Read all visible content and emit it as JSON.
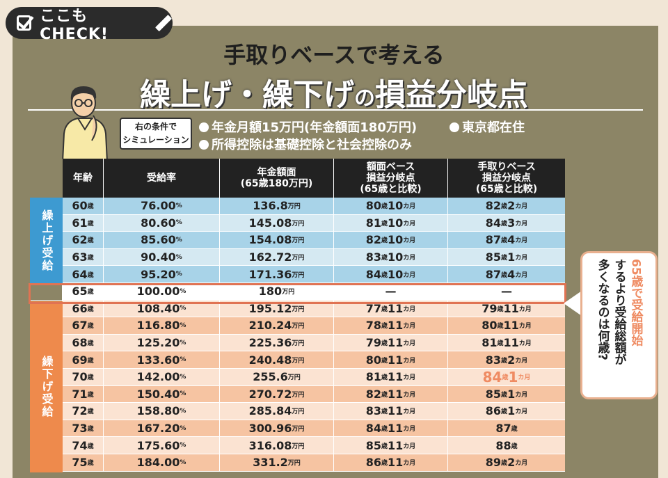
{
  "badge": {
    "text": "ここもCHECK!"
  },
  "title": {
    "sub": "手取りベースで考える",
    "main_a": "繰上げ・繰下げ",
    "main_no": "の",
    "main_b": "損益分岐点"
  },
  "conditions": {
    "label": "右の条件で\nシミュレーション",
    "items": [
      "年金月額15万円(年金額面180万円)",
      "東京都在住",
      "所得控除は基礎控除と社会控除のみ"
    ]
  },
  "table": {
    "headers": [
      "年齢",
      "受給率",
      "年金額面\n(65歳180万円)",
      "額面ベース\n損益分岐点\n(65歳と比較)",
      "手取りベース\n損益分岐点\n(65歳と比較)"
    ],
    "group_up": "繰上げ受給",
    "group_down": "繰下げ受給",
    "rows": [
      {
        "age": "60",
        "rate": "76.00",
        "amount": "136.8",
        "gross": [
          "80",
          "10"
        ],
        "net": [
          "82",
          "2"
        ]
      },
      {
        "age": "61",
        "rate": "80.60",
        "amount": "145.08",
        "gross": [
          "81",
          "10"
        ],
        "net": [
          "84",
          "3"
        ]
      },
      {
        "age": "62",
        "rate": "85.60",
        "amount": "154.08",
        "gross": [
          "82",
          "10"
        ],
        "net": [
          "87",
          "4"
        ]
      },
      {
        "age": "63",
        "rate": "90.40",
        "amount": "162.72",
        "gross": [
          "83",
          "10"
        ],
        "net": [
          "85",
          "1"
        ]
      },
      {
        "age": "64",
        "rate": "95.20",
        "amount": "171.36",
        "gross": [
          "84",
          "10"
        ],
        "net": [
          "87",
          "4"
        ]
      },
      {
        "age": "65",
        "rate": "100.00",
        "amount": "180",
        "gross_text": "—",
        "net_text": "—"
      },
      {
        "age": "66",
        "rate": "108.40",
        "amount": "195.12",
        "gross": [
          "77",
          "11"
        ],
        "net": [
          "79",
          "11"
        ]
      },
      {
        "age": "67",
        "rate": "116.80",
        "amount": "210.24",
        "gross": [
          "78",
          "11"
        ],
        "net": [
          "80",
          "11"
        ]
      },
      {
        "age": "68",
        "rate": "125.20",
        "amount": "225.36",
        "gross": [
          "79",
          "11"
        ],
        "net": [
          "81",
          "11"
        ]
      },
      {
        "age": "69",
        "rate": "133.60",
        "amount": "240.48",
        "gross": [
          "80",
          "11"
        ],
        "net": [
          "83",
          "2"
        ]
      },
      {
        "age": "70",
        "rate": "142.00",
        "amount": "255.6",
        "gross": [
          "81",
          "11"
        ],
        "net": [
          "84",
          "1"
        ]
      },
      {
        "age": "71",
        "rate": "150.40",
        "amount": "270.72",
        "gross": [
          "82",
          "11"
        ],
        "net": [
          "85",
          "1"
        ]
      },
      {
        "age": "72",
        "rate": "158.80",
        "amount": "285.84",
        "gross": [
          "83",
          "11"
        ],
        "net": [
          "86",
          "1"
        ]
      },
      {
        "age": "73",
        "rate": "167.20",
        "amount": "300.96",
        "gross": [
          "84",
          "11"
        ],
        "net": [
          "87",
          ""
        ]
      },
      {
        "age": "74",
        "rate": "175.60",
        "amount": "316.08",
        "gross": [
          "85",
          "11"
        ],
        "net": [
          "88",
          ""
        ]
      },
      {
        "age": "75",
        "rate": "184.00",
        "amount": "331.2",
        "gross": [
          "86",
          "11"
        ],
        "net": [
          "89",
          "2"
        ]
      }
    ],
    "units": {
      "age": "歳",
      "rate": "%",
      "amount": "万円",
      "month": "カ月"
    }
  },
  "callout": {
    "line1": "65歳で受給開始",
    "line2": "するより受給総額が",
    "line3": "多くなるのは何歳?"
  },
  "colors": {
    "panel": "#8c8566",
    "blue_dark": "#3d9ad1",
    "orange_dark": "#ee8a4c",
    "highlight": "#ef8b62",
    "base_outline": "#e07353"
  }
}
